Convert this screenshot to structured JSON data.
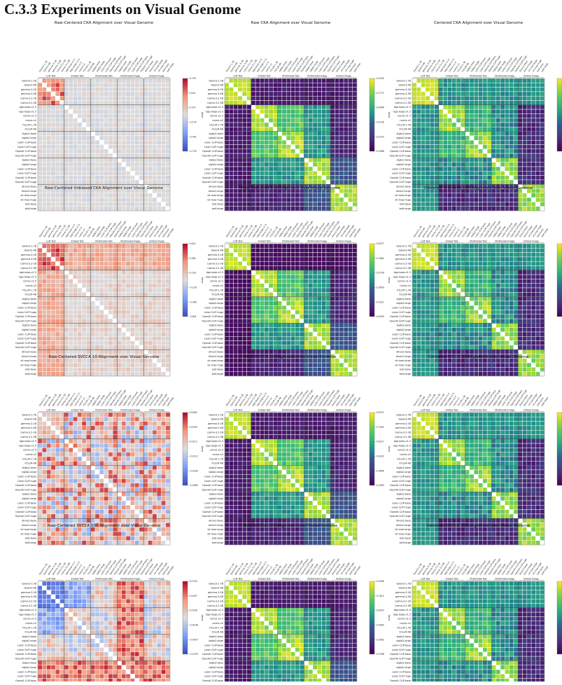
{
  "section_heading": "C.3.3   Experiments on Visual Genome",
  "models": [
    "Qwen3-1.7B",
    "Qwen3-4B",
    "gemma-3-1B",
    "gemma-3-4B",
    "Llama-3.2-1B",
    "Llama-3.2-3B",
    "bge-base-v1.5",
    "bge-large-v1.5",
    "nomic-v1.5",
    "nomic-v2",
    "F2LLM-1.7B",
    "F2LLM-4B",
    "siglip2-base",
    "siglip2-large",
    "Laion CLIP-base",
    "Laion CLIP-huge",
    "OpenAI CLIP-base",
    "OpenAI CLIP-huge",
    "siglip2-base",
    "siglip2-large",
    "Laion CLIP-base",
    "Laion CLIP-huge",
    "OpenAI CLIP-base",
    "OpenAI CLIP-huge",
    "dinov2-base",
    "dinov2-large",
    "vit-mae-large",
    "vit-mae-huge",
    "beit-base",
    "beit-large"
  ],
  "groups": [
    {
      "label": "LLM Text",
      "start": 0,
      "end": 5
    },
    {
      "label": "Embed Text",
      "start": 6,
      "end": 11
    },
    {
      "label": "Multimodal Text",
      "start": 12,
      "end": 17
    },
    {
      "label": "Multimodal Image",
      "start": 18,
      "end": 23
    },
    {
      "label": "Embed Image",
      "start": 24,
      "end": 29
    }
  ],
  "colorbar_label": "Value",
  "chart_data": [
    {
      "type": "heatmap",
      "title": "Raw-Centered CKA Alignment over Visual Genome",
      "colormap": "coolwarm",
      "pattern": "rc_cka",
      "ticks": [
        "0.735",
        "0.441",
        "0.147",
        "-0.147",
        "-0.441",
        "-0.735"
      ],
      "range": [
        -0.735,
        0.735
      ]
    },
    {
      "type": "heatmap",
      "title": "Raw CKA Alignment over Visual Genome",
      "colormap": "viridis",
      "pattern": "raw",
      "ticks": [
        "0.9249",
        "0.7773",
        "0.6496",
        "0.4138",
        "0.2197",
        "0.0388"
      ],
      "range": [
        0.0388,
        0.9249
      ]
    },
    {
      "type": "heatmap",
      "title": "Centered CKA Alignment over Visual Genome",
      "colormap": "viridis",
      "pattern": "centered",
      "ticks": [
        "0.9613",
        "0.7835",
        "0.6047",
        "0.4260",
        "0.2472",
        "0.0683"
      ],
      "range": [
        0.0683,
        0.9613
      ]
    },
    {
      "type": "heatmap",
      "title": "Raw-Centered Unbiased CKA Alignment over Visual Genome",
      "colormap": "coolwarm",
      "pattern": "rc_ucka",
      "ticks": [
        "0.641",
        "0.384",
        "0.128",
        "-0.128",
        "-0.384",
        "-0.641"
      ],
      "range": [
        -0.641,
        0.641
      ]
    },
    {
      "type": "heatmap",
      "title": "Raw Unbiased CKA Alignment over Visual Genome",
      "colormap": "viridis",
      "pattern": "raw_u",
      "ticks": [
        "0.9577",
        "0.7662",
        "0.5756",
        "0.3830",
        "0.1913",
        "0.0000"
      ],
      "range": [
        0,
        0.9577
      ]
    },
    {
      "type": "heatmap",
      "title": "Centered Unbiased CKA Alignment over Visual Genome",
      "colormap": "viridis",
      "pattern": "centered",
      "ticks": [
        "0.9957",
        "0.7995",
        "0.5983",
        "0.4171",
        "0.2359",
        "0.0548"
      ],
      "range": [
        0.0548,
        0.9957
      ]
    },
    {
      "type": "heatmap",
      "title": "Raw-Centered SVCCA 10 Alignment over Visual Genome",
      "colormap": "coolwarm",
      "pattern": "rc_sv10",
      "ticks": [
        "0.0565",
        "0.0339",
        "0.0113",
        "-0.0113",
        "-0.0339",
        "-0.0565"
      ],
      "range": [
        -0.0565,
        0.0565
      ]
    },
    {
      "type": "heatmap",
      "title": "Raw SVCCA 10 Alignment over Visual Genome",
      "colormap": "viridis",
      "pattern": "raw",
      "ticks": [
        "0.8797",
        "0.7500",
        "0.6217",
        "0.4931",
        "0.3646",
        "0.2583"
      ],
      "range": [
        0.2583,
        0.8797
      ]
    },
    {
      "type": "heatmap",
      "title": "Centered SVCCA 10 Alignment over Visual Genome",
      "colormap": "viridis",
      "pattern": "centered",
      "ticks": [
        "0.8842",
        "0.7698",
        "0.6454",
        "0.5167",
        "0.3863",
        "0.2616"
      ],
      "range": [
        0.2616,
        0.8842
      ]
    },
    {
      "type": "heatmap",
      "title": "Raw-Centered SVCCA 100 Alignment over Visual Genome",
      "colormap": "coolwarm",
      "pattern": "rc_sv100",
      "ticks": [
        "0.0729",
        "0.0437",
        "0.0146",
        "-0.0146",
        "-0.0437",
        "-0.0729"
      ],
      "range": [
        -0.0729,
        0.0729
      ]
    },
    {
      "type": "heatmap",
      "title": "Raw SVCCA 100 Alignment over Visual Genome",
      "colormap": "viridis",
      "pattern": "raw",
      "ticks": [
        "0.9186",
        "0.7813",
        "0.6370",
        "0.4990",
        "0.3583",
        "0.2788"
      ],
      "range": [
        0.2788,
        0.9186
      ]
    },
    {
      "type": "heatmap",
      "title": "Centered SVCCA 100 Alignment over Visual Genome",
      "colormap": "viridis",
      "pattern": "centered",
      "ticks": [
        "0.9165",
        "0.7575",
        "0.6002",
        "0.4451",
        "0.2916",
        "0.1361"
      ],
      "range": [
        0.1361,
        0.9165
      ]
    }
  ]
}
